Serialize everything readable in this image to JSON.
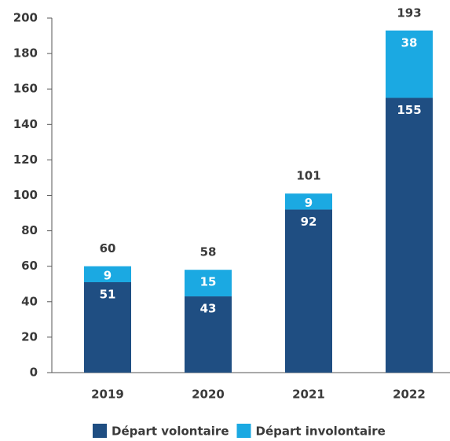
{
  "chart_data": {
    "type": "stacked_bar",
    "categories": [
      "2019",
      "2020",
      "2021",
      "2022"
    ],
    "series": [
      {
        "name": "Départ volontaire",
        "color": "#1f4e82",
        "values": [
          51,
          43,
          92,
          155
        ]
      },
      {
        "name": "Départ involontaire",
        "color": "#1ba9e2",
        "values": [
          9,
          15,
          9,
          38
        ]
      }
    ],
    "totals": [
      60,
      58,
      101,
      193
    ],
    "ylim": [
      0,
      200
    ],
    "yticks": [
      0,
      20,
      40,
      60,
      80,
      100,
      120,
      140,
      160,
      180,
      200
    ],
    "grid": false,
    "legend": "bottom"
  }
}
